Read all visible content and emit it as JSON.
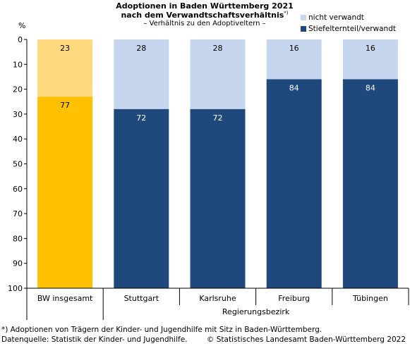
{
  "header": {
    "title_line1": "Adoptionen in Baden Württemberg 2021",
    "title_line2": "nach dem Verwandtschaftsverhältnis",
    "title_sup": "*)",
    "subtitle": "– Verhältnis zu den Adoptiveltern –"
  },
  "legend": {
    "items": [
      {
        "label": "nicht verwandt",
        "color": "#c6d6ee"
      },
      {
        "label": "Stiefelternteil/verwandt",
        "color": "#1f497d"
      }
    ]
  },
  "footer": {
    "footnote": "*) Adoptionen von Trägern der Kinder- und Jugendhilfe mit Sitz in Baden-Württemberg.",
    "source": "Datenquelle: Statistik der Kinder- und Jugendhilfe.",
    "copyright": "© Statistisches Landesamt Baden-Württemberg 2022"
  },
  "chart_data": {
    "type": "bar",
    "stacked": true,
    "orientation": "vertical",
    "ylabel": "%",
    "y_axis_reversed": true,
    "ylim": [
      0,
      100
    ],
    "yticks": [
      0,
      10,
      20,
      30,
      40,
      50,
      60,
      70,
      80,
      90,
      100
    ],
    "categories": [
      "BW insgesamt",
      "Stuttgart",
      "Karlsruhe",
      "Freiburg",
      "Tübingen"
    ],
    "group_label": "Regierungsbezirk",
    "series": [
      {
        "name": "nicht verwandt",
        "values": [
          23,
          28,
          28,
          16,
          16
        ],
        "colors": [
          "#ffd980",
          "#c6d6ee",
          "#c6d6ee",
          "#c6d6ee",
          "#c6d6ee"
        ]
      },
      {
        "name": "Stiefelternteil/verwandt",
        "values": [
          77,
          72,
          72,
          84,
          84
        ],
        "colors": [
          "#ffc000",
          "#1f497d",
          "#1f497d",
          "#1f497d",
          "#1f497d"
        ]
      }
    ],
    "label_colors": [
      "#000000",
      "#ffffff"
    ],
    "grid": false
  }
}
